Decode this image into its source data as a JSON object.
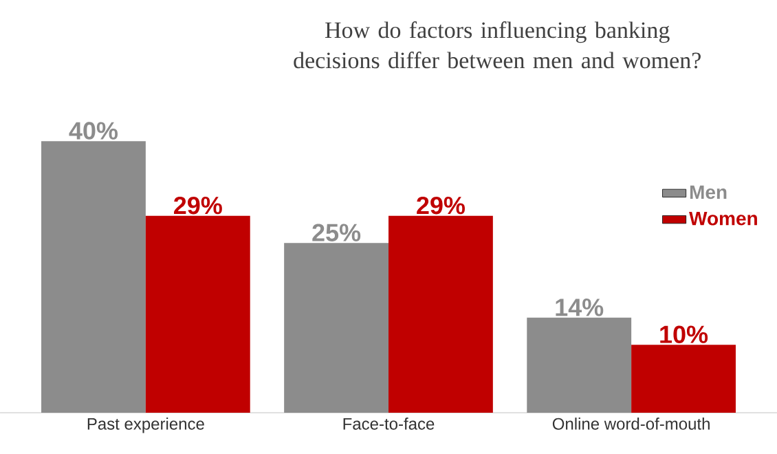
{
  "chart_data": {
    "type": "bar",
    "title": "How do factors influencing banking decisions differ between men and women?",
    "categories": [
      "Past experience",
      "Face-to-face",
      "Online word-of-mouth"
    ],
    "series": [
      {
        "name": "Men",
        "color": "#8c8c8c",
        "values": [
          40,
          25,
          14
        ],
        "value_labels": [
          "40%",
          "25%",
          "14%"
        ]
      },
      {
        "name": "Women",
        "color": "#c00000",
        "values": [
          29,
          29,
          10
        ],
        "value_labels": [
          "29%",
          "29%",
          "10%"
        ]
      }
    ],
    "legend": "right"
  }
}
